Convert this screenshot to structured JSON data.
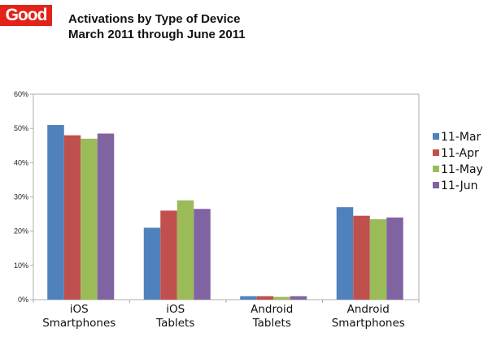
{
  "header": {
    "logo_text": "Good",
    "logo_color": "#e2231a",
    "title_line1": "Activations by Type of Device",
    "title_line2": "March 2011 through June 2011"
  },
  "chart_data": {
    "type": "bar",
    "categories": [
      [
        "iOS",
        "Smartphones"
      ],
      [
        "iOS",
        "Tablets"
      ],
      [
        "Android",
        "Tablets"
      ],
      [
        "Android",
        "Smartphones"
      ]
    ],
    "series": [
      {
        "name": "11-Mar",
        "color": "#4f81bd",
        "values": [
          51,
          21,
          1,
          27
        ]
      },
      {
        "name": "11-Apr",
        "color": "#c0504d",
        "values": [
          48,
          26,
          1,
          24.5
        ]
      },
      {
        "name": "11-May",
        "color": "#9bbb59",
        "values": [
          47,
          29,
          0.8,
          23.5
        ]
      },
      {
        "name": "11-Jun",
        "color": "#8064a2",
        "values": [
          48.5,
          26.5,
          1,
          24
        ]
      }
    ],
    "y_ticks": [
      "0%",
      "10%",
      "20%",
      "30%",
      "40%",
      "50%",
      "60%"
    ],
    "ylim": [
      0,
      60
    ],
    "grid": false,
    "legend": "right"
  }
}
